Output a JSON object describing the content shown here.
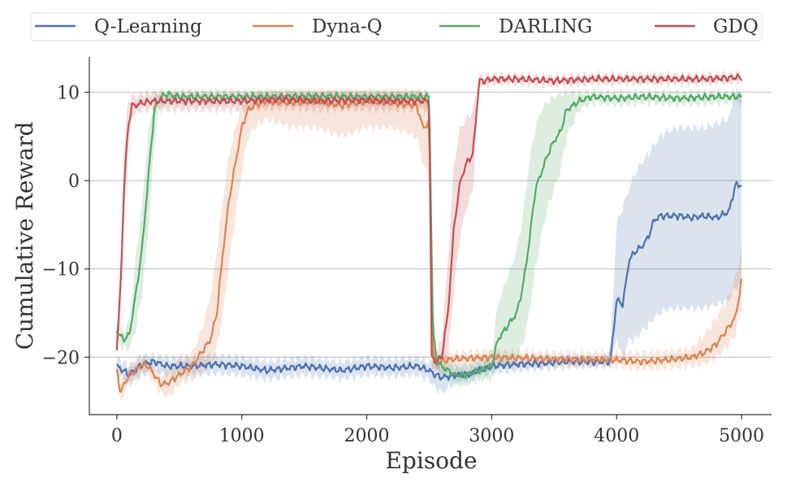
{
  "chart_data": {
    "type": "line",
    "title": "",
    "xlabel": "Episode",
    "ylabel": "Cumulative Reward",
    "xlim": [
      -220,
      5240
    ],
    "ylim": [
      -26.5,
      14
    ],
    "xticks": [
      0,
      1000,
      2000,
      3000,
      4000,
      5000
    ],
    "xtick_labels": [
      "0",
      "1000",
      "2000",
      "3000",
      "4000",
      "5000"
    ],
    "yticks": [
      -20,
      -10,
      0,
      10
    ],
    "ytick_labels": [
      "−20",
      "−10",
      "0",
      "10"
    ],
    "grid": "horizontal",
    "legend_position": "top",
    "series": [
      {
        "name": "Q-Learning",
        "color": "#4c72b0",
        "x": [
          0,
          100,
          200,
          300,
          400,
          600,
          800,
          1000,
          1200,
          1500,
          1800,
          2000,
          2200,
          2400,
          2500,
          2550,
          2600,
          2700,
          2800,
          2900,
          3000,
          3200,
          3400,
          3600,
          3800,
          3900,
          3950,
          4000,
          4050,
          4100,
          4150,
          4200,
          4250,
          4300,
          4350,
          4400,
          4500,
          4600,
          4700,
          4800,
          4900,
          4950,
          5000
        ],
        "values": [
          -21,
          -22,
          -20.8,
          -20.5,
          -21,
          -21,
          -20.8,
          -21,
          -21.5,
          -21,
          -21.5,
          -21,
          -21.2,
          -21,
          -21.5,
          -22,
          -22.3,
          -22,
          -22,
          -21.5,
          -21,
          -20.8,
          -20.7,
          -20.5,
          -20.5,
          -20.5,
          -20.5,
          -13.5,
          -14,
          -9,
          -8,
          -7.5,
          -6.5,
          -4.5,
          -4,
          -4,
          -4,
          -4.2,
          -4,
          -4.2,
          -3.5,
          -0.5,
          -0.5
        ],
        "band_low": [
          -22,
          -23,
          -22,
          -21.5,
          -22,
          -22,
          -21.8,
          -22,
          -22.5,
          -22,
          -22.5,
          -22,
          -22.2,
          -22,
          -22.5,
          -23.5,
          -24,
          -23,
          -22.8,
          -22.3,
          -21.8,
          -21.5,
          -21.3,
          -21,
          -21,
          -21,
          -21,
          -18,
          -20,
          -18,
          -18,
          -17,
          -16.5,
          -15.5,
          -15,
          -14.5,
          -14.5,
          -14.5,
          -14.5,
          -14,
          -13.5,
          -12,
          -12
        ],
        "band_high": [
          -20,
          -21,
          -19.8,
          -19.8,
          -20,
          -20,
          -19.8,
          -20,
          -20.5,
          -20,
          -20.5,
          -20,
          -20.2,
          -20,
          -20.5,
          -20.5,
          -21,
          -21,
          -21,
          -20.8,
          -20.3,
          -20.2,
          -20.1,
          -20,
          -20,
          -20,
          -19,
          -5,
          -3,
          -1,
          1,
          2,
          3,
          4,
          5,
          5.5,
          6,
          6,
          6,
          6.5,
          7,
          10,
          10
        ]
      },
      {
        "name": "Dyna-Q",
        "color": "#dd8452",
        "x": [
          0,
          30,
          60,
          100,
          150,
          200,
          250,
          300,
          350,
          400,
          450,
          500,
          600,
          650,
          700,
          750,
          800,
          850,
          900,
          950,
          1000,
          1050,
          1100,
          1200,
          1400,
          1600,
          1800,
          2000,
          2200,
          2400,
          2450,
          2500,
          2530,
          2560,
          2700,
          3000,
          3500,
          4000,
          4200,
          4400,
          4600,
          4700,
          4800,
          4900,
          4950,
          5000
        ],
        "values": [
          -21.5,
          -24,
          -23,
          -22,
          -21.5,
          -20.8,
          -21,
          -22,
          -23,
          -23,
          -22.5,
          -22,
          -21,
          -20,
          -19,
          -18,
          -15,
          -8,
          -2,
          2,
          6,
          8,
          8.5,
          9,
          8.8,
          9,
          8.5,
          9,
          8.8,
          8.5,
          6,
          6.5,
          -20,
          -20.5,
          -20.2,
          -20,
          -20.2,
          -20.3,
          -20.5,
          -20.3,
          -20,
          -19.5,
          -18.5,
          -16.5,
          -15.5,
          -11.5
        ],
        "band_low": [
          -22.5,
          -25,
          -24,
          -23,
          -22.5,
          -21.8,
          -22,
          -23,
          -24,
          -24.5,
          -24,
          -23,
          -22.5,
          -22,
          -21.5,
          -21,
          -19,
          -15,
          -9,
          -4,
          1,
          5,
          6,
          7,
          6,
          6,
          5,
          6,
          6,
          5,
          2,
          0,
          -21,
          -21.5,
          -21,
          -20.8,
          -21,
          -21,
          -21.3,
          -21.2,
          -21,
          -20.8,
          -20,
          -18.5,
          -17.5,
          -14
        ],
        "band_high": [
          -20.5,
          -23,
          -22,
          -21,
          -20.5,
          -20,
          -20,
          -21,
          -22,
          -21.5,
          -21,
          -20.5,
          -19.5,
          -18,
          -16,
          -13,
          -8,
          -2,
          3,
          6,
          8.5,
          9.5,
          9.8,
          10,
          10,
          10,
          10,
          10,
          10,
          10,
          9.5,
          9,
          -19.2,
          -19.5,
          -19.5,
          -19.3,
          -19.5,
          -19.5,
          -19.5,
          -19.4,
          -19,
          -17.5,
          -15.5,
          -13,
          -11,
          -8
        ]
      },
      {
        "name": "DARLING",
        "color": "#55a868",
        "x": [
          0,
          50,
          100,
          150,
          200,
          250,
          300,
          330,
          360,
          400,
          500,
          700,
          1000,
          1300,
          1600,
          1900,
          2200,
          2500,
          2530,
          2560,
          2600,
          2700,
          2800,
          2900,
          3000,
          3050,
          3100,
          3150,
          3200,
          3250,
          3300,
          3350,
          3400,
          3450,
          3500,
          3550,
          3600,
          3700,
          3800,
          4000,
          4200,
          4500,
          4800,
          5000
        ],
        "values": [
          -17,
          -18,
          -17.5,
          -13,
          -8,
          0,
          8,
          9,
          9.5,
          9.8,
          9.5,
          9.5,
          9.5,
          9.5,
          9.6,
          9.5,
          9.5,
          9.5,
          -17,
          -20.5,
          -21,
          -22,
          -22,
          -21.5,
          -21,
          -18,
          -17,
          -16,
          -15,
          -12,
          -7,
          -1,
          1,
          3,
          4.5,
          5.5,
          8,
          9,
          9.5,
          9.3,
          9.5,
          9.3,
          9.5,
          9.5
        ],
        "band_low": [
          -18,
          -19,
          -19,
          -17,
          -13,
          -6,
          4,
          7.5,
          8.5,
          9,
          8.8,
          8.8,
          8.8,
          8.8,
          8.9,
          8.8,
          8.8,
          8.8,
          -18.5,
          -21.5,
          -22,
          -23,
          -23,
          -22.5,
          -22.5,
          -21,
          -21,
          -20.5,
          -20,
          -18.5,
          -15,
          -10,
          -6,
          -3,
          -1,
          1,
          5,
          8,
          8.8,
          8.6,
          8.8,
          8.6,
          8.8,
          8.8
        ],
        "band_high": [
          -16,
          -17,
          -16,
          -9,
          -3,
          5,
          9.5,
          10,
          10,
          10,
          10,
          10,
          10,
          10,
          10,
          10,
          10,
          10,
          -15.5,
          -19.5,
          -20,
          -21,
          -21,
          -20.5,
          -19.5,
          -14,
          -12,
          -10,
          -8,
          -4,
          2,
          6,
          8,
          9,
          9.5,
          9.8,
          10,
          10,
          10,
          10,
          10,
          10,
          10,
          10
        ]
      },
      {
        "name": "GDQ",
        "color": "#c44e52",
        "x": [
          0,
          30,
          60,
          90,
          120,
          150,
          200,
          300,
          500,
          700,
          1000,
          1300,
          1600,
          1900,
          2200,
          2500,
          2520,
          2550,
          2600,
          2650,
          2700,
          2750,
          2800,
          2850,
          2900,
          2950,
          3000,
          3200,
          3500,
          3800,
          4100,
          4400,
          4700,
          5000
        ],
        "values": [
          -19,
          -12,
          0,
          6,
          8.5,
          8.5,
          8.8,
          9,
          9,
          9,
          9,
          9.2,
          9,
          9.1,
          9,
          9,
          -20,
          -20.5,
          -20,
          -15,
          -5,
          0,
          2,
          3,
          11.3,
          11.3,
          11.5,
          11.5,
          11.3,
          11.5,
          11.5,
          11.5,
          11.5,
          11.7
        ],
        "band_low": [
          -20,
          -15,
          -4,
          3,
          7.5,
          7.5,
          8,
          8,
          8,
          8,
          8,
          8.2,
          8,
          8.1,
          8,
          8,
          -21,
          -21.5,
          -21,
          -20,
          -12,
          -6,
          -3,
          -1,
          10.8,
          10.8,
          11,
          11,
          10.8,
          11,
          11,
          11,
          11,
          11.2
        ],
        "band_high": [
          -18,
          -9,
          4,
          9,
          9.5,
          9.5,
          9.8,
          10,
          10,
          10,
          10,
          10,
          10,
          10,
          10,
          10,
          -19,
          -19.5,
          -18,
          -9,
          2,
          6,
          7,
          8,
          11.8,
          11.8,
          12,
          12,
          11.8,
          12,
          12,
          12,
          12,
          12.2
        ]
      }
    ]
  }
}
